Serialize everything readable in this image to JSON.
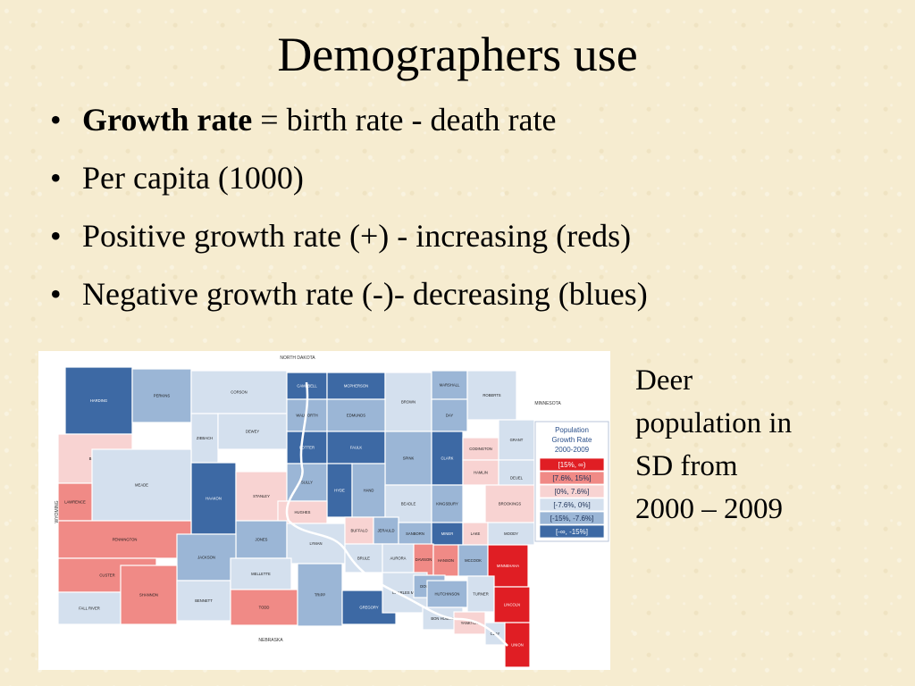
{
  "slide": {
    "title": "Demographers use",
    "bullets": [
      {
        "bold": "Growth rate",
        "rest": " = birth rate - death rate"
      },
      {
        "bold": "",
        "rest": "Per capita (1000)"
      },
      {
        "bold": "",
        "rest": "Positive growth rate (+) -  increasing (reds)"
      },
      {
        "bold": "",
        "rest": "Negative growth rate (-)- decreasing (blues)"
      }
    ],
    "caption_lines": [
      "Deer",
      "population in",
      "SD from",
      "2000 – 2009"
    ]
  },
  "map": {
    "neighbor_labels": {
      "north": "NORTH DAKOTA",
      "east": "MINNESOTA",
      "south": "NEBRASKA",
      "west": "WYOMING"
    },
    "legend": {
      "title_lines": [
        "Population",
        "Growth Rate",
        "2000-2009"
      ],
      "classes": [
        {
          "label": "[15%, ∞)",
          "color": "#e01e24"
        },
        {
          "label": "[7.6%, 15%]",
          "color": "#f08a86"
        },
        {
          "label": "[0%, 7.6%]",
          "color": "#f8d3d2"
        },
        {
          "label": "[-7.6%, 0%]",
          "color": "#d4e0ee"
        },
        {
          "label": "[-15%, -7.6%]",
          "color": "#9bb6d6"
        },
        {
          "label": "[-∞, -15%]",
          "color": "#3d69a4"
        }
      ]
    },
    "counties": [
      {
        "name": "HARDING",
        "color": "#3d69a4"
      },
      {
        "name": "PERKINS",
        "color": "#9bb6d6"
      },
      {
        "name": "CORSON",
        "color": "#d4e0ee"
      },
      {
        "name": "CAMPBELL",
        "color": "#3d69a4"
      },
      {
        "name": "MCPHERSON",
        "color": "#3d69a4"
      },
      {
        "name": "BROWN",
        "color": "#d4e0ee"
      },
      {
        "name": "MARSHALL",
        "color": "#9bb6d6"
      },
      {
        "name": "ROBERTS",
        "color": "#d4e0ee"
      },
      {
        "name": "BUTTE",
        "color": "#f8d3d2"
      },
      {
        "name": "ZIEBACH",
        "color": "#d4e0ee"
      },
      {
        "name": "DEWEY",
        "color": "#d4e0ee"
      },
      {
        "name": "WALWORTH",
        "color": "#9bb6d6"
      },
      {
        "name": "EDMUNDS",
        "color": "#9bb6d6"
      },
      {
        "name": "DAY",
        "color": "#9bb6d6"
      },
      {
        "name": "MEADE",
        "color": "#d4e0ee"
      },
      {
        "name": "POTTER",
        "color": "#3d69a4"
      },
      {
        "name": "FAULK",
        "color": "#3d69a4"
      },
      {
        "name": "SPINK",
        "color": "#9bb6d6"
      },
      {
        "name": "CLARK",
        "color": "#3d69a4"
      },
      {
        "name": "CODINGTON",
        "color": "#f8d3d2"
      },
      {
        "name": "GRANT",
        "color": "#d4e0ee"
      },
      {
        "name": "LAWRENCE",
        "color": "#f08a86"
      },
      {
        "name": "HAAKON",
        "color": "#3d69a4"
      },
      {
        "name": "STANLEY",
        "color": "#f8d3d2"
      },
      {
        "name": "SULLY",
        "color": "#9bb6d6"
      },
      {
        "name": "HYDE",
        "color": "#3d69a4"
      },
      {
        "name": "HAND",
        "color": "#9bb6d6"
      },
      {
        "name": "BEADLE",
        "color": "#d4e0ee"
      },
      {
        "name": "KINGSBURY",
        "color": "#9bb6d6"
      },
      {
        "name": "HAMLIN",
        "color": "#f8d3d2"
      },
      {
        "name": "DEUEL",
        "color": "#d4e0ee"
      },
      {
        "name": "HUGHES",
        "color": "#f8d3d2"
      },
      {
        "name": "BROOKINGS",
        "color": "#f8d3d2"
      },
      {
        "name": "PENNINGTON",
        "color": "#f08a86"
      },
      {
        "name": "JONES",
        "color": "#9bb6d6"
      },
      {
        "name": "LYMAN",
        "color": "#d4e0ee"
      },
      {
        "name": "BUFFALO",
        "color": "#f8d3d2"
      },
      {
        "name": "JERAULD",
        "color": "#9bb6d6"
      },
      {
        "name": "SANBORN",
        "color": "#9bb6d6"
      },
      {
        "name": "MINER",
        "color": "#3d69a4"
      },
      {
        "name": "LAKE",
        "color": "#f8d3d2"
      },
      {
        "name": "MOODY",
        "color": "#d4e0ee"
      },
      {
        "name": "CUSTER",
        "color": "#f08a86"
      },
      {
        "name": "JACKSON",
        "color": "#9bb6d6"
      },
      {
        "name": "BRULE",
        "color": "#d4e0ee"
      },
      {
        "name": "AURORA",
        "color": "#d4e0ee"
      },
      {
        "name": "DAVISON",
        "color": "#f08a86"
      },
      {
        "name": "HANSON",
        "color": "#f08a86"
      },
      {
        "name": "MCCOOK",
        "color": "#9bb6d6"
      },
      {
        "name": "MINNEHAHA",
        "color": "#e01e24"
      },
      {
        "name": "FALL RIVER",
        "color": "#d4e0ee"
      },
      {
        "name": "SHANNON",
        "color": "#f08a86"
      },
      {
        "name": "BENNETT",
        "color": "#d4e0ee"
      },
      {
        "name": "MELLETTE",
        "color": "#d4e0ee"
      },
      {
        "name": "TODD",
        "color": "#f08a86"
      },
      {
        "name": "TRIPP",
        "color": "#9bb6d6"
      },
      {
        "name": "GREGORY",
        "color": "#3d69a4"
      },
      {
        "name": "CHARLES MIX",
        "color": "#d4e0ee"
      },
      {
        "name": "DOUGLAS",
        "color": "#9bb6d6"
      },
      {
        "name": "HUTCHINSON",
        "color": "#9bb6d6"
      },
      {
        "name": "TURNER",
        "color": "#d4e0ee"
      },
      {
        "name": "LINCOLN",
        "color": "#e01e24"
      },
      {
        "name": "BON HOMME",
        "color": "#d4e0ee"
      },
      {
        "name": "YANKTON",
        "color": "#f8d3d2"
      },
      {
        "name": "CLAY",
        "color": "#d4e0ee"
      },
      {
        "name": "UNION",
        "color": "#e01e24"
      }
    ]
  }
}
